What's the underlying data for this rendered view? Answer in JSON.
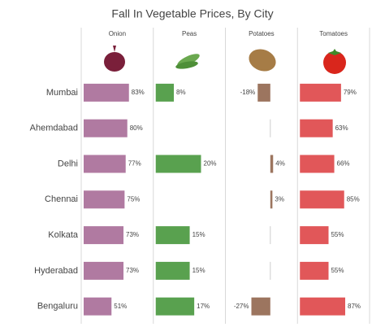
{
  "chart_data": {
    "type": "bar",
    "title": "Fall In Vegetable Prices, By City",
    "categories": [
      "Mumbai",
      "Ahemdabad",
      "Delhi",
      "Chennai",
      "Kolkata",
      "Hyderabad",
      "Bengaluru"
    ],
    "series": [
      {
        "name": "Onion",
        "color": "#b07aa1",
        "values": [
          83,
          80,
          77,
          75,
          73,
          73,
          51
        ],
        "value_labels": [
          "83%",
          "80%",
          "77%",
          "75%",
          "73%",
          "73%",
          "51%"
        ]
      },
      {
        "name": "Peas",
        "color": "#59a14f",
        "values": [
          8,
          null,
          20,
          null,
          15,
          15,
          17
        ],
        "value_labels": [
          "8%",
          null,
          "20%",
          null,
          "15%",
          "15%",
          "17%"
        ]
      },
      {
        "name": "Potatoes",
        "color": "#9c755f",
        "values": [
          -18,
          null,
          4,
          3,
          null,
          null,
          -27
        ],
        "value_labels": [
          "-18%",
          null,
          "4%",
          "3%",
          null,
          null,
          "-27%"
        ]
      },
      {
        "name": "Tomatoes",
        "color": "#e15759",
        "values": [
          79,
          63,
          66,
          85,
          55,
          55,
          87
        ],
        "value_labels": [
          "79%",
          "63%",
          "66%",
          "85%",
          "55%",
          "55%",
          "87%"
        ]
      }
    ]
  }
}
